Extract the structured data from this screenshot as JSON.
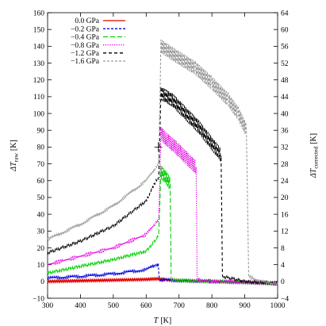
{
  "chart_data": {
    "type": "line",
    "x_axis": {
      "label_main": "T",
      "label_unit": "[K]",
      "range": [
        300,
        1000
      ],
      "ticks": [
        300,
        400,
        500,
        600,
        700,
        800,
        900,
        1000
      ],
      "tick_labels": [
        "300",
        "400",
        "500",
        "600",
        "700",
        "800",
        "900",
        "1000"
      ]
    },
    "y_axis_left": {
      "label_main": "ΔT",
      "label_sub": "raw",
      "label_unit": "[K]",
      "range": [
        -10,
        160
      ],
      "ticks": [
        -10,
        0,
        10,
        20,
        30,
        40,
        50,
        60,
        70,
        80,
        90,
        100,
        110,
        120,
        130,
        140,
        150,
        160
      ],
      "tick_labels": [
        "−10",
        "0",
        "10",
        "20",
        "30",
        "40",
        "50",
        "60",
        "70",
        "80",
        "90",
        "100",
        "110",
        "120",
        "130",
        "140",
        "150",
        "160"
      ]
    },
    "y_axis_right": {
      "label_main": "ΔT",
      "label_sub": "corrected",
      "label_unit": "[K]",
      "range": [
        -4,
        64
      ],
      "ticks": [
        -4,
        0,
        4,
        8,
        12,
        16,
        20,
        24,
        28,
        32,
        36,
        40,
        44,
        48,
        52,
        56,
        60,
        64
      ],
      "tick_labels": [
        "−4",
        "0",
        "4",
        "8",
        "12",
        "16",
        "20",
        "24",
        "28",
        "32",
        "36",
        "40",
        "44",
        "48",
        "52",
        "56",
        "60",
        "64"
      ]
    },
    "grid": false,
    "legend_placement": "top-left",
    "series": [
      {
        "name": "0.0 GPa",
        "color": "#e00000",
        "dash": "solid",
        "points": [
          [
            300,
            0
          ],
          [
            400,
            0.4
          ],
          [
            500,
            0.8
          ],
          [
            600,
            1.2
          ],
          [
            635,
            1.6
          ],
          [
            660,
            1.0
          ],
          [
            700,
            0.5
          ],
          [
            800,
            0
          ],
          [
            900,
            -0.5
          ],
          [
            960,
            -1.0
          ],
          [
            1000,
            -1.2
          ]
        ]
      },
      {
        "name": "−0.2 GPa",
        "color": "#0000e0",
        "dash": "short",
        "points": [
          [
            300,
            2
          ],
          [
            400,
            3
          ],
          [
            500,
            4.5
          ],
          [
            600,
            7
          ],
          [
            630,
            10
          ],
          [
            637,
            10
          ],
          [
            640,
            1
          ],
          [
            700,
            0.5
          ],
          [
            800,
            0
          ],
          [
            900,
            -0.5
          ],
          [
            1000,
            -1.2
          ]
        ]
      },
      {
        "name": "−0.4 GPa",
        "color": "#00d000",
        "dash": "medium",
        "points": [
          [
            300,
            5
          ],
          [
            400,
            9
          ],
          [
            500,
            13
          ],
          [
            600,
            18
          ],
          [
            630,
            25
          ],
          [
            638,
            28
          ],
          [
            645,
            65
          ],
          [
            660,
            62
          ],
          [
            673,
            58
          ],
          [
            676,
            1
          ],
          [
            700,
            0.5
          ],
          [
            800,
            0
          ],
          [
            900,
            -0.5
          ],
          [
            1000,
            -1.2
          ]
        ]
      },
      {
        "name": "−0.8 GPa",
        "color": "#e000e0",
        "dash": "dotted",
        "points": [
          [
            300,
            10
          ],
          [
            400,
            15
          ],
          [
            500,
            20
          ],
          [
            600,
            28
          ],
          [
            630,
            35
          ],
          [
            638,
            36
          ],
          [
            645,
            88
          ],
          [
            660,
            85
          ],
          [
            700,
            78
          ],
          [
            740,
            70
          ],
          [
            752,
            68
          ],
          [
            755,
            1
          ],
          [
            800,
            0
          ],
          [
            900,
            -0.5
          ],
          [
            1000,
            -1.2
          ]
        ]
      },
      {
        "name": "−1.2 GPa",
        "color": "#000000",
        "dash": "long",
        "points": [
          [
            300,
            17
          ],
          [
            400,
            24
          ],
          [
            500,
            33
          ],
          [
            600,
            48
          ],
          [
            630,
            60
          ],
          [
            638,
            62
          ],
          [
            645,
            112
          ],
          [
            680,
            108
          ],
          [
            720,
            100
          ],
          [
            760,
            92
          ],
          [
            800,
            82
          ],
          [
            828,
            75
          ],
          [
            832,
            3
          ],
          [
            900,
            0
          ],
          [
            1000,
            -1.2
          ]
        ]
      },
      {
        "name": "−1.6 GPa",
        "color": "#999999",
        "dash": "short",
        "points": [
          [
            300,
            25
          ],
          [
            400,
            34
          ],
          [
            500,
            45
          ],
          [
            600,
            60
          ],
          [
            630,
            68
          ],
          [
            638,
            70
          ],
          [
            645,
            140
          ],
          [
            700,
            133
          ],
          [
            750,
            127
          ],
          [
            800,
            118
          ],
          [
            850,
            108
          ],
          [
            880,
            100
          ],
          [
            905,
            90
          ],
          [
            912,
            3
          ],
          [
            950,
            0
          ],
          [
            1000,
            -1.5
          ]
        ]
      }
    ]
  }
}
